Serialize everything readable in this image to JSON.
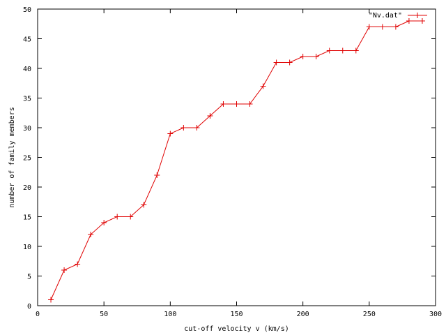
{
  "chart_data": {
    "type": "line",
    "xlabel": "cut-off velocity v (km/s)",
    "ylabel": "number of family members",
    "xlim": [
      0,
      300
    ],
    "ylim": [
      0,
      50
    ],
    "x_ticks": [
      0,
      50,
      100,
      150,
      200,
      250,
      300
    ],
    "y_ticks": [
      0,
      5,
      10,
      15,
      20,
      25,
      30,
      35,
      40,
      45,
      50
    ],
    "grid": false,
    "legend_position": "top-right",
    "series": [
      {
        "name": "\"Nv.dat\"",
        "color": "#e00000",
        "marker": "plus",
        "x": [
          10,
          20,
          30,
          40,
          50,
          60,
          70,
          80,
          90,
          100,
          110,
          120,
          130,
          140,
          150,
          160,
          170,
          180,
          190,
          200,
          210,
          220,
          230,
          240,
          250,
          260,
          270,
          280,
          290
        ],
        "y": [
          1,
          6,
          7,
          12,
          14,
          15,
          15,
          17,
          22,
          29,
          30,
          30,
          32,
          34,
          34,
          34,
          37,
          41,
          41,
          42,
          42,
          43,
          43,
          43,
          47,
          47,
          47,
          48,
          48
        ]
      }
    ]
  }
}
